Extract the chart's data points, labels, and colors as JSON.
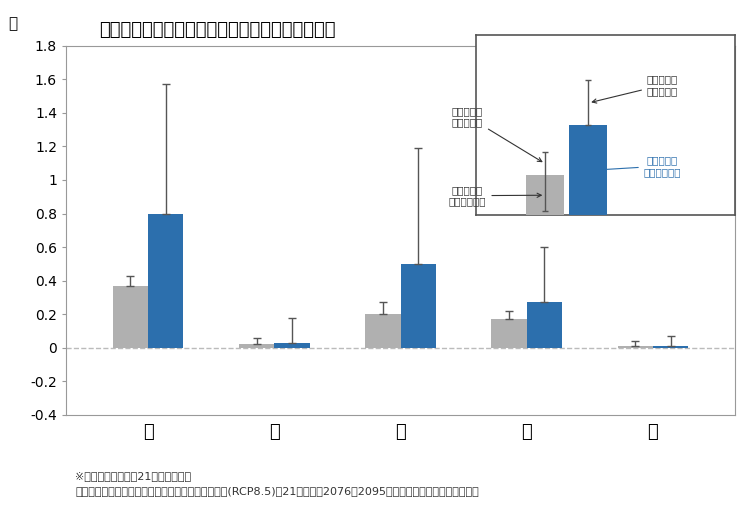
{
  "title": "滝のように降る雨の回数の将来変化（神奈川県）",
  "ylabel": "回",
  "categories": [
    "年",
    "春",
    "夏",
    "秋",
    "冬"
  ],
  "current_values": [
    0.37,
    0.02,
    0.2,
    0.17,
    0.01
  ],
  "future_values": [
    0.8,
    0.03,
    0.5,
    0.27,
    0.01
  ],
  "current_err_up": [
    0.43,
    0.06,
    0.27,
    0.22,
    0.04
  ],
  "current_err_dn": [
    0.37,
    0.02,
    0.2,
    0.17,
    0.01
  ],
  "future_err_up": [
    1.57,
    0.18,
    1.19,
    0.6,
    0.07
  ],
  "future_err_dn": [
    0.8,
    0.03,
    0.5,
    0.27,
    0.01
  ],
  "current_color": "#b0b0b0",
  "future_color": "#2c6fad",
  "ylim": [
    -0.4,
    1.8
  ],
  "yticks": [
    -0.4,
    -0.2,
    0.0,
    0.2,
    0.4,
    0.6,
    0.8,
    1.0,
    1.2,
    1.4,
    1.6,
    1.8
  ],
  "ytick_labels": [
    "-0.4",
    "-0.2",
    "0",
    "0.2",
    "0.4",
    "0.6",
    "0.8",
    "1",
    "1.2",
    "1.4",
    "1.6",
    "1.8"
  ],
  "background_color": "#ffffff",
  "grid_color": "#bbbbbb",
  "note_line1": "※出典：神奈川県の21世紀末の気候",
  "note_line2": "（現状を上回る気候変動対策をとられなかった場合(RCP8.5)の21世紀末（2076～2095年）における気候の予測結果）",
  "bar_width": 0.28,
  "inset": {
    "current_bar_val": 0.45,
    "future_bar_val": 1.0,
    "current_err_up": 0.25,
    "future_err_up": 0.5,
    "label_current_avg": "現在気候の\n平均発生回数",
    "label_current_var": "現在気候の\n年々変動幅",
    "label_future_avg": "将来気候の\n平均発生回数",
    "label_future_var": "将来気候の\n年々変動幅"
  }
}
